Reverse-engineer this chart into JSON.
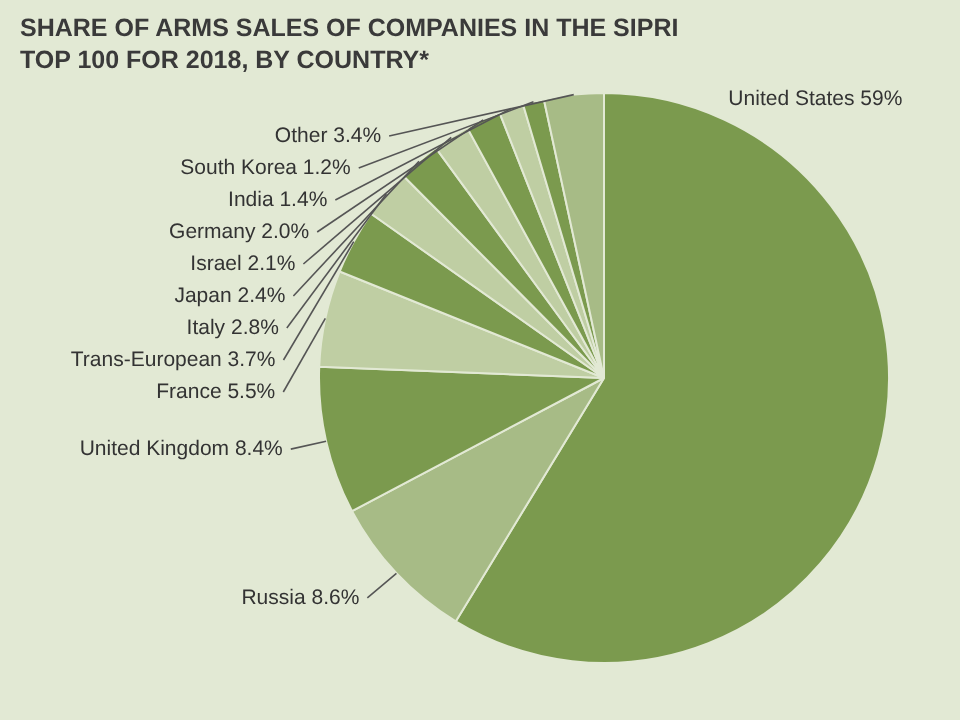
{
  "chart_data": {
    "type": "pie",
    "title": "SHARE OF ARMS SALES OF COMPANIES IN THE SIPRI TOP 100 FOR 2018, BY COUNTRY*",
    "categories": [
      "United States",
      "Russia",
      "United Kingdom",
      "France",
      "Trans-European",
      "Italy",
      "Japan",
      "Israel",
      "Germany",
      "India",
      "South Korea",
      "Other"
    ],
    "values": [
      59,
      8.6,
      8.4,
      5.5,
      3.7,
      2.8,
      2.4,
      2.1,
      2.0,
      1.4,
      1.2,
      3.4
    ],
    "value_labels": [
      "59%",
      "8.6%",
      "8.4%",
      "5.5%",
      "3.7%",
      "2.8%",
      "2.4%",
      "2.1%",
      "2.0%",
      "1.4%",
      "1.2%",
      "3.4%"
    ],
    "colors": [
      "#7b9a4e",
      "#a7bb86",
      "#7b9a4e",
      "#bfcea3",
      "#7b9a4e",
      "#bfcea3",
      "#7b9a4e",
      "#bfcea3",
      "#7b9a4e",
      "#bfcea3",
      "#7b9a4e",
      "#a7bb86"
    ],
    "legend": false
  }
}
